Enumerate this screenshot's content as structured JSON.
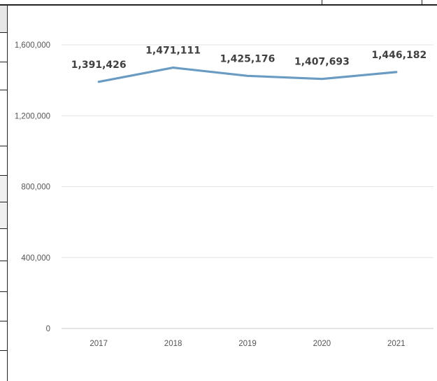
{
  "chart_data": {
    "type": "line",
    "title": "",
    "xlabel": "",
    "ylabel": "",
    "categories": [
      "2017",
      "2018",
      "2019",
      "2020",
      "2021"
    ],
    "series": [
      {
        "values": [
          1391426,
          1471111,
          1425176,
          1407693,
          1446182
        ]
      }
    ],
    "data_labels": [
      "1,391,426",
      "1,471,111",
      "1,425,176",
      "1,407,693",
      "1,446,182"
    ],
    "y_ticks": [
      0,
      400000,
      800000,
      1200000,
      1600000
    ],
    "y_tick_labels": [
      "0",
      "400,000",
      "800,000",
      "1,200,000",
      "1,600,000"
    ],
    "ylim": [
      0,
      1600000
    ],
    "grid": true,
    "legend": "none",
    "colors": {
      "line": "#6a9bc3",
      "grid": "#e3e3e3",
      "axis": "#c8c8c8"
    }
  }
}
